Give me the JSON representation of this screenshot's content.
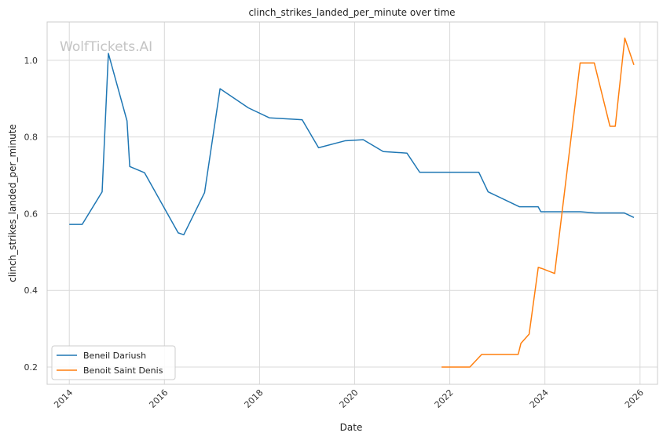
{
  "watermark": "WolfTickets.AI",
  "chart_data": {
    "type": "line",
    "title": "clinch_strikes_landed_per_minute over time",
    "xlabel": "Date",
    "ylabel": "clinch_strikes_landed_per_minute",
    "x_ticks": [
      "2014",
      "2016",
      "2018",
      "2020",
      "2022",
      "2024",
      "2026"
    ],
    "y_ticks": [
      "0.2",
      "0.4",
      "0.6",
      "0.8",
      "1.0"
    ],
    "xlim": [
      "2013-07-15",
      "2026-05-15"
    ],
    "ylim": [
      0.155,
      1.1
    ],
    "grid": true,
    "legend_position": "lower-left",
    "series": [
      {
        "name": "Beneil Dariush",
        "color": "#1f77b4",
        "points": [
          [
            "2014-01-01",
            0.572
          ],
          [
            "2014-04-10",
            0.572
          ],
          [
            "2014-09-10",
            0.657
          ],
          [
            "2014-10-28",
            1.018
          ],
          [
            "2015-03-20",
            0.842
          ],
          [
            "2015-04-10",
            0.723
          ],
          [
            "2015-08-01",
            0.707
          ],
          [
            "2016-04-16",
            0.55
          ],
          [
            "2016-05-29",
            0.545
          ],
          [
            "2016-11-05",
            0.655
          ],
          [
            "2017-03-04",
            0.926
          ],
          [
            "2017-10-07",
            0.876
          ],
          [
            "2018-03-17",
            0.85
          ],
          [
            "2018-11-24",
            0.845
          ],
          [
            "2019-03-30",
            0.772
          ],
          [
            "2019-10-18",
            0.79
          ],
          [
            "2020-03-07",
            0.793
          ],
          [
            "2020-08-08",
            0.762
          ],
          [
            "2021-02-06",
            0.758
          ],
          [
            "2021-05-15",
            0.708
          ],
          [
            "2022-08-12",
            0.708
          ],
          [
            "2022-10-22",
            0.657
          ],
          [
            "2023-06-20",
            0.618
          ],
          [
            "2023-11-10",
            0.618
          ],
          [
            "2023-12-01",
            0.605
          ],
          [
            "2024-10-01",
            0.605
          ],
          [
            "2025-01-20",
            0.602
          ],
          [
            "2025-09-01",
            0.602
          ],
          [
            "2025-11-15",
            0.59
          ]
        ]
      },
      {
        "name": "Benoit Saint Denis",
        "color": "#ff7f0e",
        "points": [
          [
            "2021-10-30",
            0.2
          ],
          [
            "2022-06-04",
            0.2
          ],
          [
            "2022-09-03",
            0.233
          ],
          [
            "2023-06-10",
            0.233
          ],
          [
            "2023-07-01",
            0.262
          ],
          [
            "2023-09-02",
            0.286
          ],
          [
            "2023-11-11",
            0.46
          ],
          [
            "2023-12-09",
            0.457
          ],
          [
            "2024-03-16",
            0.444
          ],
          [
            "2024-09-28",
            0.993
          ],
          [
            "2025-01-15",
            0.993
          ],
          [
            "2025-05-15",
            0.828
          ],
          [
            "2025-06-25",
            0.828
          ],
          [
            "2025-09-06",
            1.058
          ],
          [
            "2025-11-15",
            0.988
          ]
        ]
      }
    ]
  }
}
